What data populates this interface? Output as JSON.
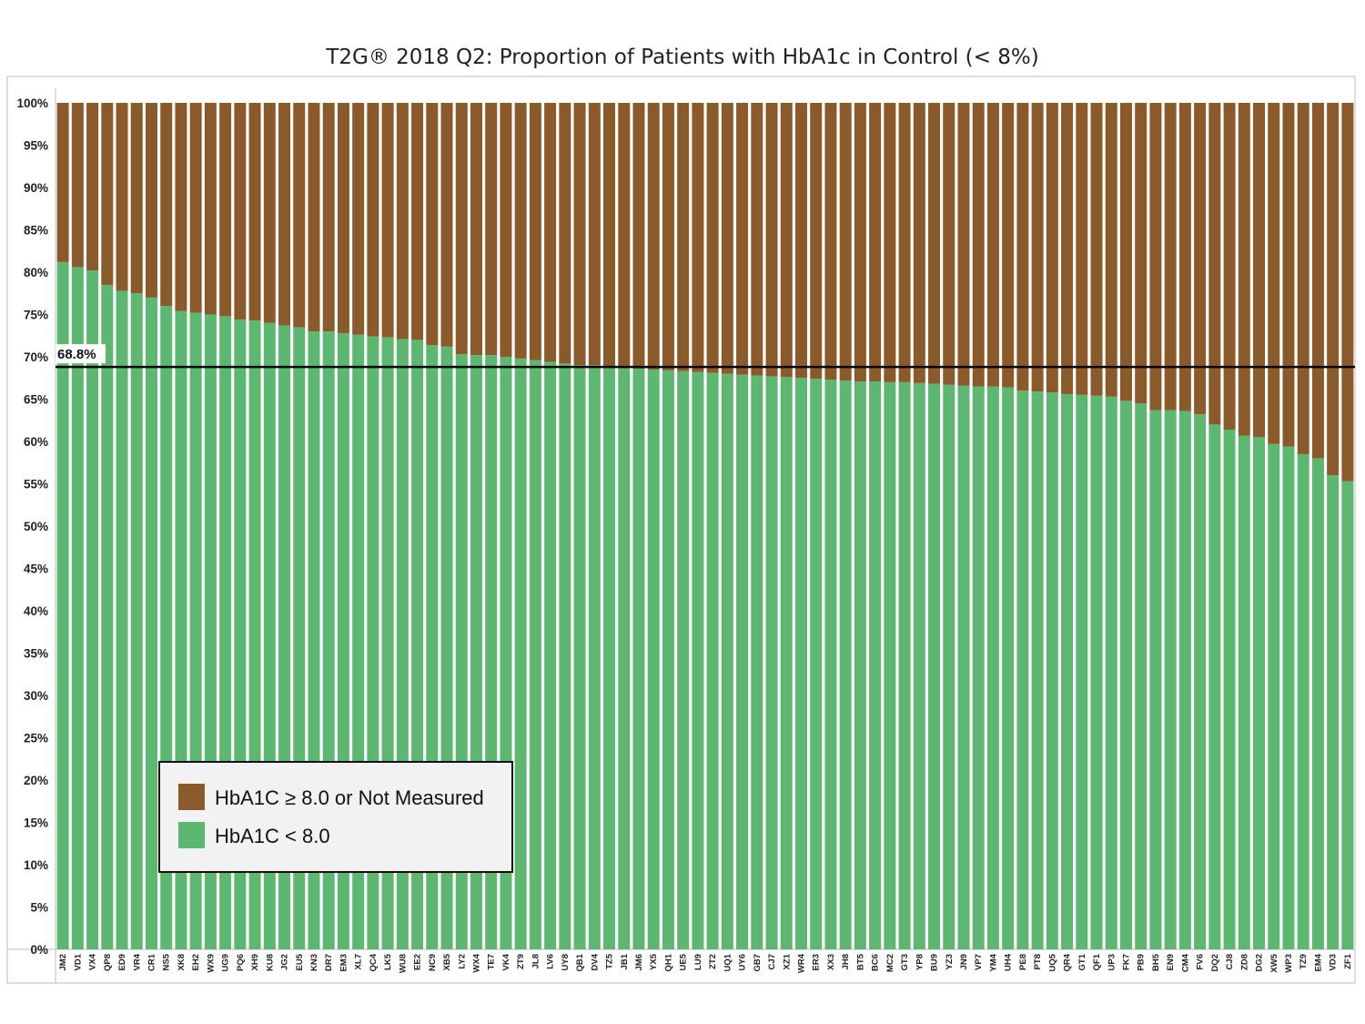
{
  "chart_data": {
    "type": "bar",
    "stacked": true,
    "title": "T2G® 2018 Q2: Proportion of Patients with HbA1c in Control (< 8%)",
    "xlabel": "",
    "ylabel": "",
    "ylim": [
      0,
      100
    ],
    "y_ticks": [
      "0%",
      "5%",
      "10%",
      "15%",
      "20%",
      "25%",
      "30%",
      "35%",
      "40%",
      "45%",
      "50%",
      "55%",
      "60%",
      "65%",
      "70%",
      "75%",
      "80%",
      "85%",
      "90%",
      "95%",
      "100%"
    ],
    "categories": [
      "JM2",
      "VD1",
      "VX4",
      "QP8",
      "ED9",
      "VR4",
      "CR1",
      "NS5",
      "XK8",
      "EH2",
      "WX9",
      "UG9",
      "PQ6",
      "XH9",
      "KU8",
      "JG2",
      "EU5",
      "KN3",
      "DR7",
      "EM3",
      "XL7",
      "QC4",
      "LK5",
      "WU8",
      "EE2",
      "NC9",
      "XB5",
      "LY2",
      "WX4",
      "TE7",
      "VK4",
      "ZT9",
      "JL8",
      "LV6",
      "UY8",
      "QB1",
      "DV4",
      "TZ5",
      "JB1",
      "JM6",
      "YX5",
      "QH1",
      "UE5",
      "LU9",
      "ZT2",
      "UQ1",
      "UY6",
      "GB7",
      "CJ7",
      "XZ1",
      "WR4",
      "ER3",
      "XX3",
      "JH8",
      "BT5",
      "BC6",
      "MC2",
      "GT3",
      "YP8",
      "BU9",
      "YZ3",
      "JN9",
      "VP7",
      "YM4",
      "UH4",
      "PE8",
      "PT8",
      "UQ5",
      "QR4",
      "GT1",
      "QF1",
      "UP3",
      "FK7",
      "PB9",
      "BH5",
      "EN9",
      "CM4",
      "FV6",
      "DQ2",
      "CJ8",
      "ZD8",
      "DG2",
      "XW5",
      "WP3",
      "TZ9",
      "EM4",
      "VD3",
      "ZF1"
    ],
    "series": [
      {
        "name": "HbA1C ≥ 8.0 or Not Measured",
        "color": "#8B5A2B",
        "values": [
          18.8,
          19.4,
          19.8,
          21.5,
          22.2,
          22.5,
          23.0,
          24.0,
          24.6,
          24.8,
          25.0,
          25.2,
          25.6,
          25.7,
          26.0,
          26.3,
          26.5,
          27.0,
          27.0,
          27.2,
          27.4,
          27.6,
          27.7,
          27.9,
          28.0,
          28.6,
          28.8,
          29.7,
          29.8,
          29.8,
          30.0,
          30.2,
          30.4,
          30.6,
          30.8,
          31.0,
          31.0,
          31.2,
          31.3,
          31.4,
          31.5,
          31.6,
          31.7,
          31.8,
          31.9,
          32.0,
          32.1,
          32.2,
          32.3,
          32.4,
          32.5,
          32.6,
          32.7,
          32.8,
          32.9,
          32.9,
          33.0,
          33.0,
          33.1,
          33.2,
          33.3,
          33.4,
          33.5,
          33.5,
          33.6,
          34.0,
          34.1,
          34.2,
          34.4,
          34.5,
          34.6,
          34.7,
          35.2,
          35.5,
          36.3,
          36.3,
          36.4,
          36.8,
          38.0,
          38.6,
          39.3,
          39.5,
          40.3,
          40.6,
          41.5,
          42.0,
          44.0,
          44.7
        ]
      },
      {
        "name": "HbA1C < 8.0",
        "color": "#5CB870",
        "values": [
          81.2,
          80.6,
          80.2,
          78.5,
          77.8,
          77.5,
          77.0,
          76.0,
          75.4,
          75.2,
          75.0,
          74.8,
          74.4,
          74.3,
          74.0,
          73.7,
          73.5,
          73.0,
          73.0,
          72.8,
          72.6,
          72.4,
          72.3,
          72.1,
          72.0,
          71.4,
          71.2,
          70.3,
          70.2,
          70.2,
          70.0,
          69.8,
          69.6,
          69.4,
          69.2,
          69.0,
          69.0,
          68.8,
          68.7,
          68.6,
          68.5,
          68.4,
          68.3,
          68.2,
          68.1,
          68.0,
          67.9,
          67.8,
          67.7,
          67.6,
          67.5,
          67.4,
          67.3,
          67.2,
          67.1,
          67.1,
          67.0,
          67.0,
          66.9,
          66.8,
          66.7,
          66.6,
          66.5,
          66.5,
          66.4,
          66.0,
          65.9,
          65.8,
          65.6,
          65.5,
          65.4,
          65.3,
          64.8,
          64.5,
          63.7,
          63.7,
          63.6,
          63.2,
          62.0,
          61.4,
          60.7,
          60.5,
          59.7,
          59.4,
          58.5,
          58.0,
          56.0,
          55.3
        ]
      }
    ],
    "reference_line": {
      "value": 68.8,
      "label": "68.8%",
      "color": "#000000"
    },
    "grid": false,
    "legend_position": "bottom-left"
  }
}
